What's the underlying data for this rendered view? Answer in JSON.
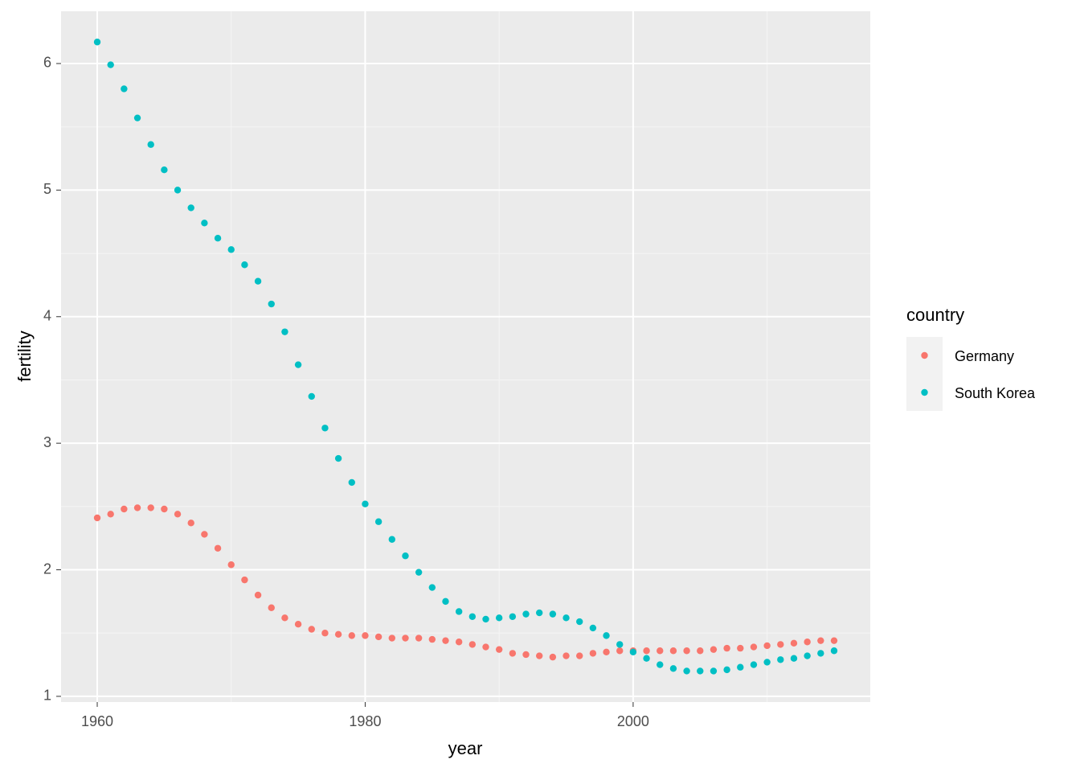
{
  "chart_data": {
    "type": "scatter",
    "x_label": "year",
    "y_label": "fertility",
    "x": [
      1960,
      1961,
      1962,
      1963,
      1964,
      1965,
      1966,
      1967,
      1968,
      1969,
      1970,
      1971,
      1972,
      1973,
      1974,
      1975,
      1976,
      1977,
      1978,
      1979,
      1980,
      1981,
      1982,
      1983,
      1984,
      1985,
      1986,
      1987,
      1988,
      1989,
      1990,
      1991,
      1992,
      1993,
      1994,
      1995,
      1996,
      1997,
      1998,
      1999,
      2000,
      2001,
      2002,
      2003,
      2004,
      2005,
      2006,
      2007,
      2008,
      2009,
      2010,
      2011,
      2012,
      2013,
      2014,
      2015
    ],
    "series": [
      {
        "name": "Germany",
        "color": "#f8766d",
        "values": [
          2.41,
          2.44,
          2.48,
          2.49,
          2.49,
          2.48,
          2.44,
          2.37,
          2.28,
          2.17,
          2.04,
          1.92,
          1.8,
          1.7,
          1.62,
          1.57,
          1.53,
          1.5,
          1.49,
          1.48,
          1.48,
          1.47,
          1.46,
          1.46,
          1.46,
          1.45,
          1.44,
          1.43,
          1.41,
          1.39,
          1.37,
          1.34,
          1.33,
          1.32,
          1.31,
          1.32,
          1.32,
          1.34,
          1.35,
          1.36,
          1.36,
          1.36,
          1.36,
          1.36,
          1.36,
          1.36,
          1.37,
          1.38,
          1.38,
          1.39,
          1.4,
          1.41,
          1.42,
          1.43,
          1.44,
          1.44
        ]
      },
      {
        "name": "South Korea",
        "color": "#00bfc4",
        "values": [
          6.17,
          5.99,
          5.8,
          5.57,
          5.36,
          5.16,
          5.0,
          4.86,
          4.74,
          4.62,
          4.53,
          4.41,
          4.28,
          4.1,
          3.88,
          3.62,
          3.37,
          3.12,
          2.88,
          2.69,
          2.52,
          2.38,
          2.24,
          2.11,
          1.98,
          1.86,
          1.75,
          1.67,
          1.63,
          1.61,
          1.62,
          1.63,
          1.65,
          1.66,
          1.65,
          1.62,
          1.59,
          1.54,
          1.48,
          1.41,
          1.35,
          1.3,
          1.25,
          1.22,
          1.2,
          1.2,
          1.2,
          1.21,
          1.23,
          1.25,
          1.27,
          1.29,
          1.3,
          1.32,
          1.34,
          1.36
        ]
      }
    ],
    "legend_title": "country",
    "legend_position": "right",
    "xlim": [
      1957.3,
      2017.7
    ],
    "ylim": [
      0.955,
      6.413
    ],
    "xticks": [
      1960,
      1980,
      2000
    ],
    "yticks": [
      1,
      2,
      3,
      4,
      5,
      6
    ],
    "minor_xticks": [
      1970,
      1990,
      2010
    ],
    "minor_yticks": [
      1.5,
      2.5,
      3.5,
      4.5,
      5.5
    ],
    "grid": true
  }
}
